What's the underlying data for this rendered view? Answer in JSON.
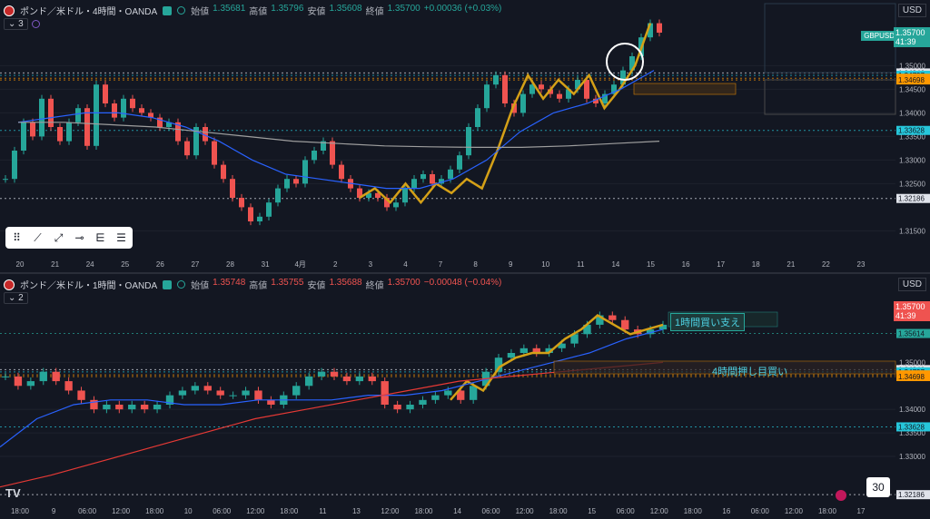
{
  "top": {
    "title": "ポンド／米ドル・4時間・OANDA",
    "ohlc": [
      {
        "label": "始値",
        "value": "1.35681",
        "dir": "up"
      },
      {
        "label": "高値",
        "value": "1.35796",
        "dir": "up"
      },
      {
        "label": "安値",
        "value": "1.35608",
        "dir": "up"
      },
      {
        "label": "終値",
        "value": "1.35700",
        "dir": "up"
      }
    ],
    "change": "+0.00036 (+0.03%)",
    "indicator_count": "3",
    "currency": "USD",
    "symbol_tag": "GBPUSD",
    "current_price": "1.35700",
    "countdown": "41:39"
  },
  "bottom": {
    "title": "ポンド／米ドル・1時間・OANDA",
    "ohlc": [
      {
        "label": "始値",
        "value": "1.35748",
        "dir": "dn"
      },
      {
        "label": "高値",
        "value": "1.35755",
        "dir": "dn"
      },
      {
        "label": "安値",
        "value": "1.35688",
        "dir": "dn"
      },
      {
        "label": "終値",
        "value": "1.35700",
        "dir": "dn"
      }
    ],
    "change": "−0.00048 (−0.04%)",
    "indicator_count": "2",
    "currency": "USD",
    "current_price": "1.35700",
    "countdown": "41:39",
    "annotation_1h": "1時間買い支え",
    "annotation_4h": "4時間押し目買い",
    "corner_number": "30",
    "logo": "TV"
  },
  "colors": {
    "up": "#26a69a",
    "down": "#ef5350",
    "swing": "#d4a017",
    "ma_fast": "#2962ff",
    "ma_slow": "#9e9e9e",
    "ma_long": "#e53935",
    "level": "#00bcd4"
  },
  "chart_data": [
    {
      "type": "line",
      "title": "ポンド／米ドル・4時間・OANDA",
      "x_ticks": [
        "20",
        "21",
        "24",
        "25",
        "26",
        "27",
        "28",
        "31",
        "4月",
        "2",
        "3",
        "4",
        "7",
        "8",
        "9",
        "10",
        "11",
        "14",
        "15",
        "16",
        "17",
        "18",
        "21",
        "22",
        "23"
      ],
      "y_ticks": [
        "1.35000",
        "1.34500",
        "1.34000",
        "1.33500",
        "1.33000",
        "1.32500",
        "1.31500"
      ],
      "ylim": [
        1.312,
        1.362
      ],
      "price_labels": [
        {
          "value": "1.34846",
          "color": "#131722",
          "bg": "#e0e3eb"
        },
        {
          "value": "1.34797",
          "color": "#131722",
          "bg": "#26c6da"
        },
        {
          "value": "1.34734",
          "color": "#131722",
          "bg": "#ff9800"
        },
        {
          "value": "1.34698",
          "color": "#131722",
          "bg": "#ff9800"
        },
        {
          "value": "1.33628",
          "color": "#131722",
          "bg": "#26c6da"
        },
        {
          "value": "1.32186",
          "color": "#131722",
          "bg": "#e0e3eb"
        }
      ],
      "series": [
        {
          "name": "",
          "kind": "price",
          "values": [
            1.326,
            1.332,
            1.338,
            1.335,
            1.343,
            1.337,
            1.334,
            1.338,
            1.341,
            1.333,
            1.346,
            1.342,
            1.339,
            1.343,
            1.341,
            1.34,
            1.339,
            1.337,
            1.338,
            1.334,
            1.331,
            1.337,
            1.334,
            1.329,
            1.326,
            1.322,
            1.32,
            1.317,
            1.318,
            1.321,
            1.324,
            1.326,
            1.325,
            1.33,
            1.332,
            1.334,
            1.329,
            1.326,
            1.324,
            1.322,
            1.323,
            1.322,
            1.32,
            1.321,
            1.324,
            1.326,
            1.327,
            1.325,
            1.326,
            1.328,
            1.331,
            1.337,
            1.341,
            1.346,
            1.348,
            1.342,
            1.34,
            1.344,
            1.346,
            1.345,
            1.344,
            1.343,
            1.345,
            1.347,
            1.343,
            1.342,
            1.344,
            1.346,
            1.349,
            1.352,
            1.356,
            1.359,
            1.357
          ]
        },
        {
          "name": "",
          "kind": "swing",
          "values": [
            1.322,
            1.324,
            1.321,
            1.325,
            1.321,
            1.325,
            1.323,
            1.326,
            1.324,
            1.332,
            1.341,
            1.348,
            1.343,
            1.347,
            1.344,
            1.348,
            1.341,
            1.345,
            1.35,
            1.359
          ]
        },
        {
          "name": "",
          "kind": "ma_fast",
          "values": [
            1.338,
            1.339,
            1.34,
            1.34,
            1.339,
            1.337,
            1.334,
            1.33,
            1.327,
            1.326,
            1.325,
            1.324,
            1.324,
            1.326,
            1.33,
            1.336,
            1.34,
            1.342,
            1.345,
            1.349
          ]
        },
        {
          "name": "",
          "kind": "ma_slow",
          "values": [
            1.338,
            1.338,
            1.3375,
            1.337,
            1.336,
            1.335,
            1.334,
            1.3335,
            1.333,
            1.3328,
            1.3327,
            1.3327,
            1.333,
            1.3335,
            1.334
          ]
        }
      ]
    },
    {
      "type": "line",
      "title": "ポンド／米ドル・1時間・OANDA",
      "x_ticks": [
        "18:00",
        "9",
        "06:00",
        "12:00",
        "18:00",
        "10",
        "06:00",
        "12:00",
        "18:00",
        "11",
        "13",
        "12:00",
        "18:00",
        "14",
        "06:00",
        "12:00",
        "18:00",
        "15",
        "06:00",
        "12:00",
        "18:00",
        "16",
        "06:00",
        "12:00",
        "18:00",
        "17"
      ],
      "y_ticks": [
        "1.35000",
        "1.34000",
        "1.33500",
        "1.33000"
      ],
      "ylim": [
        1.319,
        1.363
      ],
      "price_labels": [
        {
          "value": "1.35614",
          "color": "#131722",
          "bg": "#26a69a"
        },
        {
          "value": "1.34846",
          "color": "#131722",
          "bg": "#e0e3eb"
        },
        {
          "value": "1.34797",
          "color": "#131722",
          "bg": "#26c6da"
        },
        {
          "value": "1.34734",
          "color": "#131722",
          "bg": "#ff9800"
        },
        {
          "value": "1.34698",
          "color": "#131722",
          "bg": "#ff9800"
        },
        {
          "value": "1.33628",
          "color": "#131722",
          "bg": "#26c6da"
        },
        {
          "value": "1.32186",
          "color": "#131722",
          "bg": "#e0e3eb"
        }
      ],
      "series": [
        {
          "name": "",
          "kind": "price",
          "values": [
            1.347,
            1.345,
            1.346,
            1.348,
            1.346,
            1.344,
            1.342,
            1.34,
            1.341,
            1.34,
            1.341,
            1.34,
            1.341,
            1.343,
            1.344,
            1.345,
            1.344,
            1.343,
            1.343,
            1.344,
            1.342,
            1.341,
            1.343,
            1.345,
            1.347,
            1.348,
            1.347,
            1.346,
            1.347,
            1.346,
            1.341,
            1.34,
            1.341,
            1.342,
            1.343,
            1.344,
            1.342,
            1.345,
            1.348,
            1.351,
            1.352,
            1.353,
            1.352,
            1.353,
            1.354,
            1.356,
            1.358,
            1.36,
            1.359,
            1.357,
            1.356,
            1.357,
            1.358
          ]
        },
        {
          "name": "",
          "kind": "swing",
          "values": [
            1.342,
            1.346,
            1.344,
            1.349,
            1.351,
            1.352,
            1.352,
            1.355,
            1.357,
            1.36,
            1.358,
            1.356,
            1.357,
            1.358
          ]
        },
        {
          "name": "",
          "kind": "ma_fast",
          "values": [
            1.332,
            1.338,
            1.341,
            1.342,
            1.342,
            1.341,
            1.341,
            1.342,
            1.342,
            1.342,
            1.343,
            1.343,
            1.344,
            1.346,
            1.348,
            1.35,
            1.352,
            1.355,
            1.357
          ]
        },
        {
          "name": "",
          "kind": "ma_long",
          "values": [
            1.3235,
            1.326,
            1.329,
            1.332,
            1.335,
            1.338,
            1.34,
            1.342,
            1.344,
            1.346,
            1.347,
            1.348,
            1.349,
            1.35
          ]
        }
      ]
    }
  ]
}
